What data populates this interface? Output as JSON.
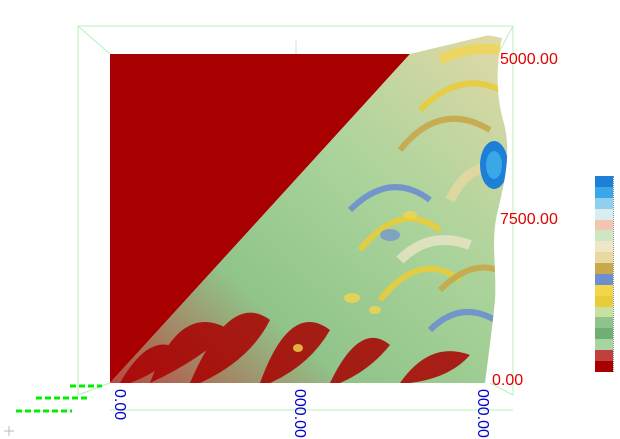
{
  "plot": {
    "y_ticks": [
      "5000.00",
      "7500.00",
      "0.00"
    ],
    "x_ticks": [
      "0.00",
      "000.00",
      "000.00"
    ]
  },
  "colorbar": {
    "colors": [
      "#1e7fd8",
      "#3aa8e8",
      "#8fd0ee",
      "#d9ecef",
      "#f4c4b0",
      "#cfe6c4",
      "#efe6c8",
      "#e8d9a0",
      "#c8a84a",
      "#6d8fd0",
      "#f2d64a",
      "#e8cc3a",
      "#c8e0a0",
      "#8ec38a",
      "#6fae74",
      "#a8d4a0",
      "#c04040",
      "#a80000"
    ]
  },
  "colors": {
    "background": "#ffffff",
    "red_region": "#a80000",
    "tick_red": "#e00000",
    "tick_blue": "#0000cc",
    "grid_green": "#a0f0a0",
    "axis_dash_green": "#00ee00"
  }
}
